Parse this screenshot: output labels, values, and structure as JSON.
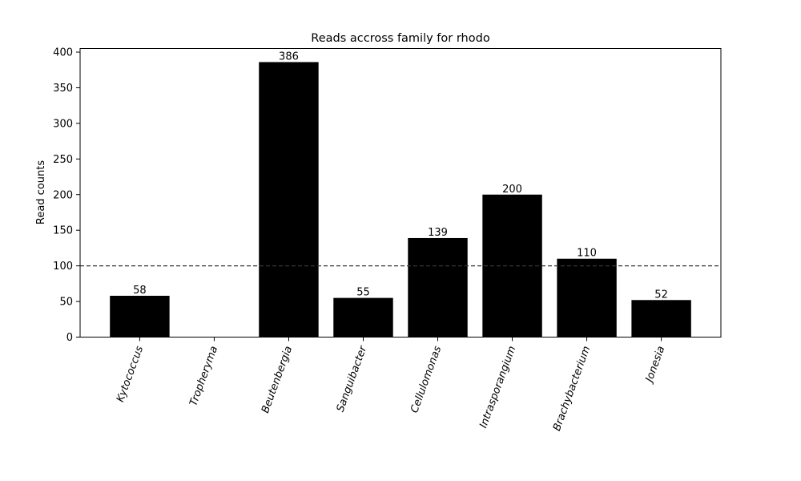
{
  "chart_data": {
    "type": "bar",
    "title": "Reads accross family for rhodo",
    "xlabel": "",
    "ylabel": "Read counts",
    "categories": [
      "Kytococcus",
      "Tropheryma",
      "Beutenbergia",
      "Sanguibacter",
      "Cellulomonas",
      "Intrasporangium",
      "Brachybacterium",
      "Jonesia"
    ],
    "values": [
      58,
      0,
      386,
      55,
      139,
      200,
      110,
      52
    ],
    "data_labels": [
      "58",
      "",
      "386",
      "55",
      "139",
      "200",
      "110",
      "52"
    ],
    "ylim": [
      0,
      400
    ],
    "yticks": [
      0,
      50,
      100,
      150,
      200,
      250,
      300,
      350,
      400
    ],
    "reference_line": {
      "y": 100,
      "style": "dashed",
      "color": "#333344"
    },
    "bar_color": "#000000",
    "grid": false,
    "legend": "none"
  }
}
